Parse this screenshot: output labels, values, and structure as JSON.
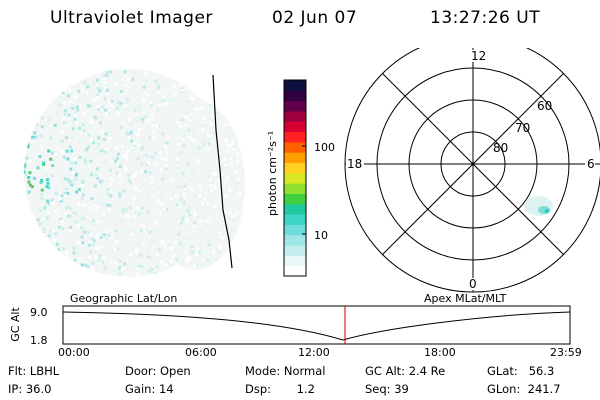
{
  "header": {
    "instrument": "Ultraviolet Imager",
    "date": "02 Jun 07",
    "time": "13:27:26 UT"
  },
  "colorbar": {
    "unit_label": "photon cm⁻²s⁻¹",
    "ticks": [
      "100",
      "10"
    ],
    "scale": "log",
    "colors": [
      "#ffffff",
      "#e8f8f8",
      "#c4eeee",
      "#9fe6e6",
      "#6fdcdc",
      "#3fd6c8",
      "#20c8a0",
      "#40d040",
      "#90e030",
      "#d8e820",
      "#ffd020",
      "#ffa000",
      "#ff6000",
      "#ff2020",
      "#d80030",
      "#a00040",
      "#60004a",
      "#300040",
      "#101040"
    ]
  },
  "polar_plot": {
    "clock_labels": {
      "top": "12",
      "left": "18",
      "right": "6",
      "bottom": "0"
    },
    "lat_labels": [
      "60",
      "70",
      "80"
    ]
  },
  "timeline": {
    "left_label": "Geographic Lat/Lon",
    "right_label": "Apex MLat/MLT",
    "axis_name": "GC Alt",
    "y_ticks": [
      "9.0",
      "1.8"
    ],
    "x_ticks": [
      "00:00",
      "06:00",
      "12:00",
      "18:00",
      "23:59"
    ]
  },
  "info": {
    "flt": "Flt:  LBHL",
    "ip": "IP:  36.0",
    "door": "Door:  Open",
    "gain": "Gain:  14",
    "mode": "Mode:  Normal",
    "dsp": "Dsp:       1.2",
    "gcalt": "GC Alt:  2.4  Re",
    "seq": "Seq:  39",
    "glat": "GLat:   56.3",
    "glon": "GLon:  241.7"
  }
}
